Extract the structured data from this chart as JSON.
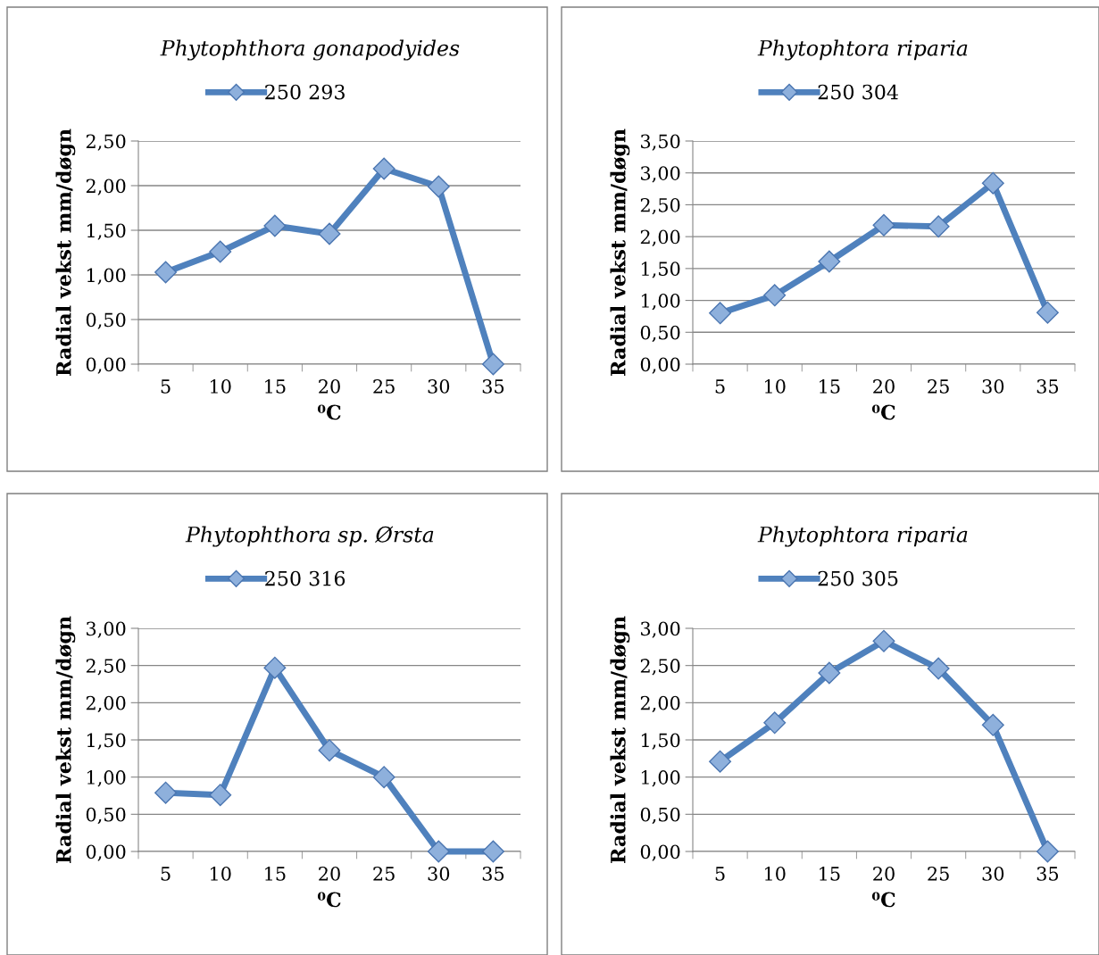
{
  "chart_data": [
    {
      "type": "line",
      "title": "Phytophthora gonapodyides",
      "xlabel": "⁰C",
      "ylabel": "Radial vekst mm/døgn",
      "categories": [
        "5",
        "10",
        "15",
        "20",
        "25",
        "30",
        "35"
      ],
      "series": [
        {
          "name": "250 293",
          "color": "#4f81bd",
          "values": [
            1.03,
            1.26,
            1.55,
            1.46,
            2.19,
            1.99,
            0.0
          ]
        }
      ],
      "ylim": [
        0,
        2.5
      ],
      "yticks": [
        {
          "value": 0,
          "label": "0,00"
        },
        {
          "value": 0.5,
          "label": "0,50"
        },
        {
          "value": 1,
          "label": "1,00"
        },
        {
          "value": 1.5,
          "label": "1,50"
        },
        {
          "value": 2,
          "label": "2,00"
        },
        {
          "value": 2.5,
          "label": "2,50"
        }
      ],
      "grid": "y",
      "legend": "top",
      "marker": "diamond"
    },
    {
      "type": "line",
      "title": "Phytophtora riparia",
      "xlabel": "⁰C",
      "ylabel": "Radial vekst mm/døgn",
      "categories": [
        "5",
        "10",
        "15",
        "20",
        "25",
        "30",
        "35"
      ],
      "series": [
        {
          "name": "250 304",
          "color": "#4f81bd",
          "values": [
            0.8,
            1.08,
            1.61,
            2.18,
            2.16,
            2.84,
            0.81
          ]
        }
      ],
      "ylim": [
        0,
        3.5
      ],
      "yticks": [
        {
          "value": 0,
          "label": "0,00"
        },
        {
          "value": 0.5,
          "label": "0,50"
        },
        {
          "value": 1,
          "label": "1,00"
        },
        {
          "value": 1.5,
          "label": "1,50"
        },
        {
          "value": 2,
          "label": "2,00"
        },
        {
          "value": 2.5,
          "label": "2,50"
        },
        {
          "value": 3,
          "label": "3,00"
        },
        {
          "value": 3.5,
          "label": "3,50"
        }
      ],
      "grid": "y",
      "legend": "top",
      "marker": "diamond"
    },
    {
      "type": "line",
      "title": "Phytophthora sp. Ørsta",
      "xlabel": "⁰C",
      "ylabel": "Radial vekst mm/døgn",
      "categories": [
        "5",
        "10",
        "15",
        "20",
        "25",
        "30",
        "35"
      ],
      "series": [
        {
          "name": "250 316",
          "color": "#4f81bd",
          "values": [
            0.79,
            0.76,
            2.47,
            1.36,
            1.0,
            0.0,
            0.0
          ]
        }
      ],
      "ylim": [
        0,
        3
      ],
      "yticks": [
        {
          "value": 0,
          "label": "0,00"
        },
        {
          "value": 0.5,
          "label": "0,50"
        },
        {
          "value": 1,
          "label": "1,00"
        },
        {
          "value": 1.5,
          "label": "1,50"
        },
        {
          "value": 2,
          "label": "2,00"
        },
        {
          "value": 2.5,
          "label": "2,50"
        },
        {
          "value": 3,
          "label": "3,00"
        }
      ],
      "grid": "y",
      "legend": "top",
      "marker": "diamond"
    },
    {
      "type": "line",
      "title": "Phytophtora riparia",
      "xlabel": "⁰C",
      "ylabel": "Radial vekst mm/døgn",
      "categories": [
        "5",
        "10",
        "15",
        "20",
        "25",
        "30",
        "35"
      ],
      "series": [
        {
          "name": "250 305",
          "color": "#4f81bd",
          "values": [
            1.21,
            1.73,
            2.4,
            2.83,
            2.46,
            1.7,
            0.0
          ]
        }
      ],
      "ylim": [
        0,
        3
      ],
      "yticks": [
        {
          "value": 0,
          "label": "0,00"
        },
        {
          "value": 0.5,
          "label": "0,50"
        },
        {
          "value": 1,
          "label": "1,00"
        },
        {
          "value": 1.5,
          "label": "1,50"
        },
        {
          "value": 2,
          "label": "2,00"
        },
        {
          "value": 2.5,
          "label": "2,50"
        },
        {
          "value": 3,
          "label": "3,00"
        }
      ],
      "grid": "y",
      "legend": "top",
      "marker": "diamond"
    }
  ]
}
